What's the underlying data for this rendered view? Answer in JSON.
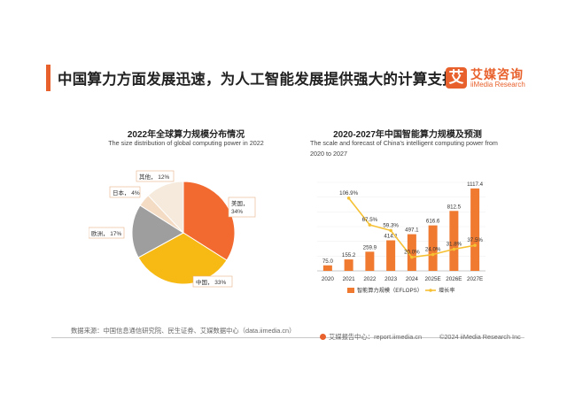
{
  "header": {
    "title": "中国算力方面发展迅速，为人工智能发展提供强大的计算支持"
  },
  "brand": {
    "mark": "艾",
    "name_cn": "艾媒咨询",
    "name_en": "iiMedia Research",
    "color": "#e8612c"
  },
  "colors": {
    "bar": "#ef7a30",
    "line": "#f5c033",
    "text": "#333333"
  },
  "chart_data": [
    {
      "type": "pie",
      "title": "2022年全球算力规模分布情况",
      "subtitle": "The size distribution of global computing power in 2022",
      "slices": [
        {
          "label": "美国，",
          "pct": 34,
          "value_text": "34%",
          "color": "#f26a30"
        },
        {
          "label": "中国，",
          "pct": 33,
          "value_text": "33%",
          "color": "#f7b913"
        },
        {
          "label": "欧洲，",
          "pct": 17,
          "value_text": "17%",
          "color": "#9e9e9e"
        },
        {
          "label": "日本，",
          "pct": 4,
          "value_text": "4%",
          "color": "#f4dcc4"
        },
        {
          "label": "其他，",
          "pct": 12,
          "value_text": "12%",
          "color": "#f5eadc"
        }
      ]
    },
    {
      "type": "bar",
      "title": "2020-2027年中国智能算力规模及预测",
      "subtitle": "The scale and forecast of China's intelligent computing power from 2020 to 2027",
      "categories": [
        "2020",
        "2021",
        "2022",
        "2023",
        "2024",
        "2025E",
        "2026E",
        "2027E"
      ],
      "series": [
        {
          "name": "智能算力规模（EFLOPS）",
          "kind": "bar",
          "values": [
            75.0,
            155.2,
            259.9,
            414.1,
            497.1,
            616.6,
            812.5,
            1117.4
          ],
          "labels": [
            "75.0",
            "155.2",
            "259.9",
            "414.1",
            "497.1",
            "616.6",
            "812.5",
            "1117.4"
          ]
        },
        {
          "name": "增长率",
          "kind": "line",
          "values": [
            null,
            106.9,
            67.5,
            59.3,
            20.0,
            24.0,
            31.8,
            37.5
          ],
          "labels": [
            "",
            "106.9%",
            "67.5%",
            "59.3%",
            "20.0%",
            "24.0%",
            "31.8%",
            "37.5%"
          ]
        }
      ],
      "ylim_bar": [
        0,
        1200
      ],
      "ylim_line": [
        0,
        130
      ],
      "grid": true,
      "legend": "bottom"
    }
  ],
  "footer": {
    "source": "数据来源：中国信息通信研究院、民生证券、艾媒数据中心（data.iimedia.cn）",
    "site": "艾媒报告中心：report.iimedia.cn",
    "copyright": "©2024 iiMedia Research Inc"
  }
}
